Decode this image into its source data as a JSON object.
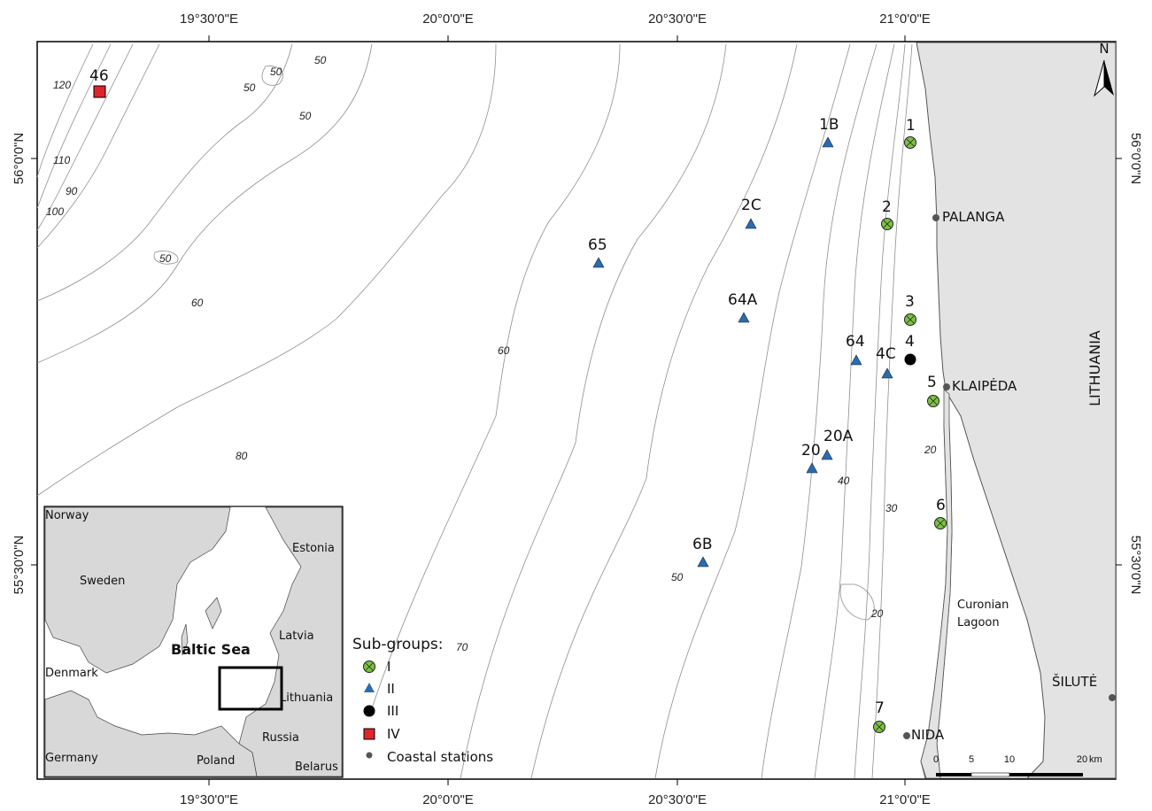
{
  "map": {
    "lon_labels_top": [
      "19°30'0\"E",
      "20°0'0\"E",
      "20°30'0\"E",
      "21°0'0\"E"
    ],
    "lon_labels_bottom": [
      "19°30'0\"E",
      "20°0'0\"E",
      "20°30'0\"E",
      "21°0'0\"E"
    ],
    "lat_labels_left": [
      "56°0'0\"N",
      "55°30'0\"N"
    ],
    "lat_labels_right": [
      "56°0'0\"N",
      "55°30'0\"N"
    ],
    "north_arrow_label": "N",
    "country_label": "LITHUANIA",
    "lagoon_label_line1": "Curonian",
    "lagoon_label_line2": "Lagoon",
    "cities": [
      "PALANGA",
      "KLAIPĖDA",
      "NIDA",
      "ŠILUTĖ"
    ],
    "colors": {
      "land": "#e3e3e3",
      "sea": "#ffffff",
      "contour": "#8f8f8f",
      "subgroup_I": "#7cc242",
      "subgroup_II": "#2b6cb0",
      "subgroup_III": "#000000",
      "subgroup_IV": "#e0242b"
    }
  },
  "stations": [
    {
      "id": "46",
      "group": "IV"
    },
    {
      "id": "1",
      "group": "I"
    },
    {
      "id": "1B",
      "group": "II"
    },
    {
      "id": "2",
      "group": "I"
    },
    {
      "id": "2C",
      "group": "II"
    },
    {
      "id": "65",
      "group": "II"
    },
    {
      "id": "64A",
      "group": "II"
    },
    {
      "id": "3",
      "group": "I"
    },
    {
      "id": "64",
      "group": "II"
    },
    {
      "id": "4C",
      "group": "II"
    },
    {
      "id": "4",
      "group": "III"
    },
    {
      "id": "5",
      "group": "I"
    },
    {
      "id": "20A",
      "group": "II"
    },
    {
      "id": "20",
      "group": "II"
    },
    {
      "id": "6",
      "group": "I"
    },
    {
      "id": "6B",
      "group": "II"
    },
    {
      "id": "7",
      "group": "I"
    }
  ],
  "depth_labels": [
    "50",
    "50",
    "50",
    "50",
    "120",
    "110",
    "90",
    "100",
    "50",
    "60",
    "60",
    "80",
    "70",
    "50",
    "40",
    "30",
    "20",
    "20"
  ],
  "inset": {
    "labels": [
      "Norway",
      "Estonia",
      "Sweden",
      "Latvia",
      "Baltic Sea",
      "Denmark",
      "Lithuania",
      "Russia",
      "Germany",
      "Poland",
      "Belarus"
    ]
  },
  "legend": {
    "title": "Sub-groups:",
    "items": [
      "I",
      "II",
      "III",
      "IV",
      "Coastal stations"
    ]
  },
  "scale": {
    "ticks": [
      "0",
      "5",
      "10",
      "20"
    ],
    "unit": "km"
  }
}
